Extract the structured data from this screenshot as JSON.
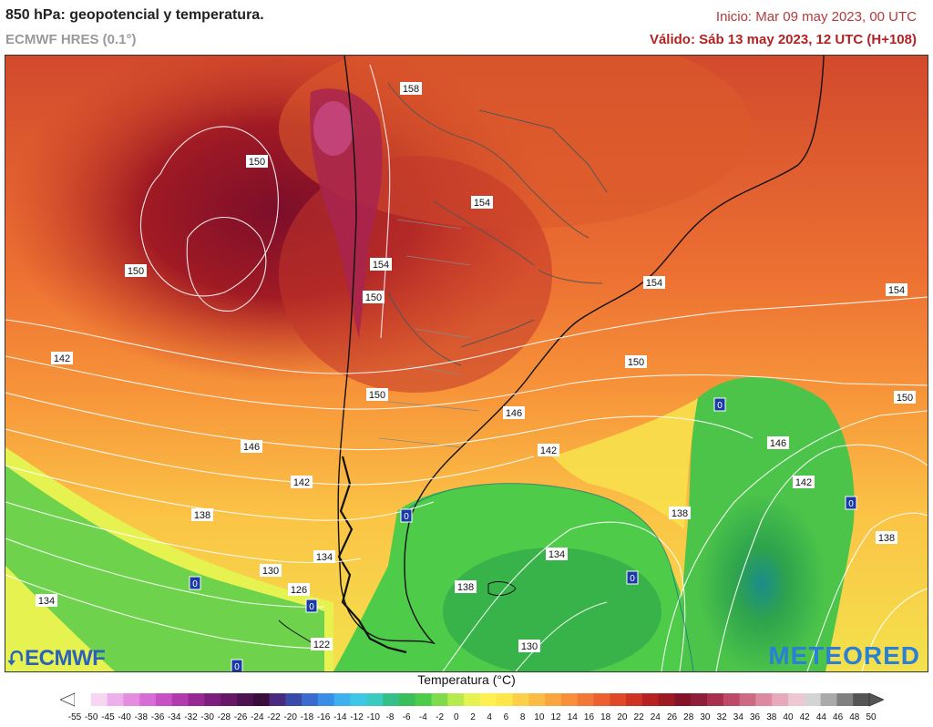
{
  "header": {
    "title": "850 hPa: geopotencial y temperatura.",
    "model": "ECMWF HRES (0.1°)",
    "init": "Inicio: Mar 09 may 2023, 00 UTC",
    "valid": "Válido: Sáb 13 may 2023, 12 UTC (H+108)"
  },
  "map": {
    "isohypse_labels": [
      "158",
      "150",
      "150",
      "154",
      "154",
      "150",
      "142",
      "154",
      "154",
      "150",
      "150",
      "150",
      "146",
      "142",
      "146",
      "142",
      "146",
      "138",
      "142",
      "134",
      "138",
      "130",
      "126",
      "134",
      "138",
      "134",
      "138",
      "130",
      "122"
    ],
    "zero_isotherm_labels": [
      "0",
      "0",
      "0",
      "0",
      "0",
      "0",
      "0"
    ]
  },
  "logos": {
    "left": "ECMWF",
    "right": "METEORED"
  },
  "legend": {
    "title": "Temperatura (°C)",
    "ticks": [
      "-55",
      "-50",
      "-45",
      "-40",
      "-38",
      "-36",
      "-34",
      "-32",
      "-30",
      "-28",
      "-26",
      "-24",
      "-22",
      "-20",
      "-18",
      "-16",
      "-14",
      "-12",
      "-10",
      "-8",
      "-6",
      "-4",
      "-2",
      "0",
      "2",
      "4",
      "6",
      "8",
      "10",
      "12",
      "14",
      "16",
      "18",
      "20",
      "22",
      "24",
      "26",
      "28",
      "30",
      "32",
      "34",
      "36",
      "38",
      "40",
      "42",
      "44",
      "46",
      "48",
      "50"
    ],
    "colors": [
      "#ffffff",
      "#f6d6f2",
      "#eeb0ea",
      "#e48ce0",
      "#d86cd6",
      "#c850c4",
      "#b03aae",
      "#962a94",
      "#7c1e7e",
      "#661866",
      "#4e1250",
      "#3a0e3c",
      "#4a2a7e",
      "#3a4aa8",
      "#3a6cd0",
      "#3a8ee6",
      "#3fb0ee",
      "#3ec6e6",
      "#3cc9c0",
      "#37bf8a",
      "#3bbd5a",
      "#4fcb4a",
      "#7ddb4c",
      "#b6ea50",
      "#e6f250",
      "#fdf050",
      "#fde64a",
      "#fcd048",
      "#fbbc44",
      "#f9a640",
      "#f7903c",
      "#f27838",
      "#ea6030",
      "#de4a28",
      "#cc3424",
      "#b42222",
      "#9c1a22",
      "#841228",
      "#8e1e3a",
      "#a6304e",
      "#bc4a66",
      "#cf6a84",
      "#dd8aa0",
      "#e6aabc",
      "#ecc8d2",
      "#d4d4d4",
      "#aaaaaa",
      "#808080",
      "#555555"
    ]
  }
}
